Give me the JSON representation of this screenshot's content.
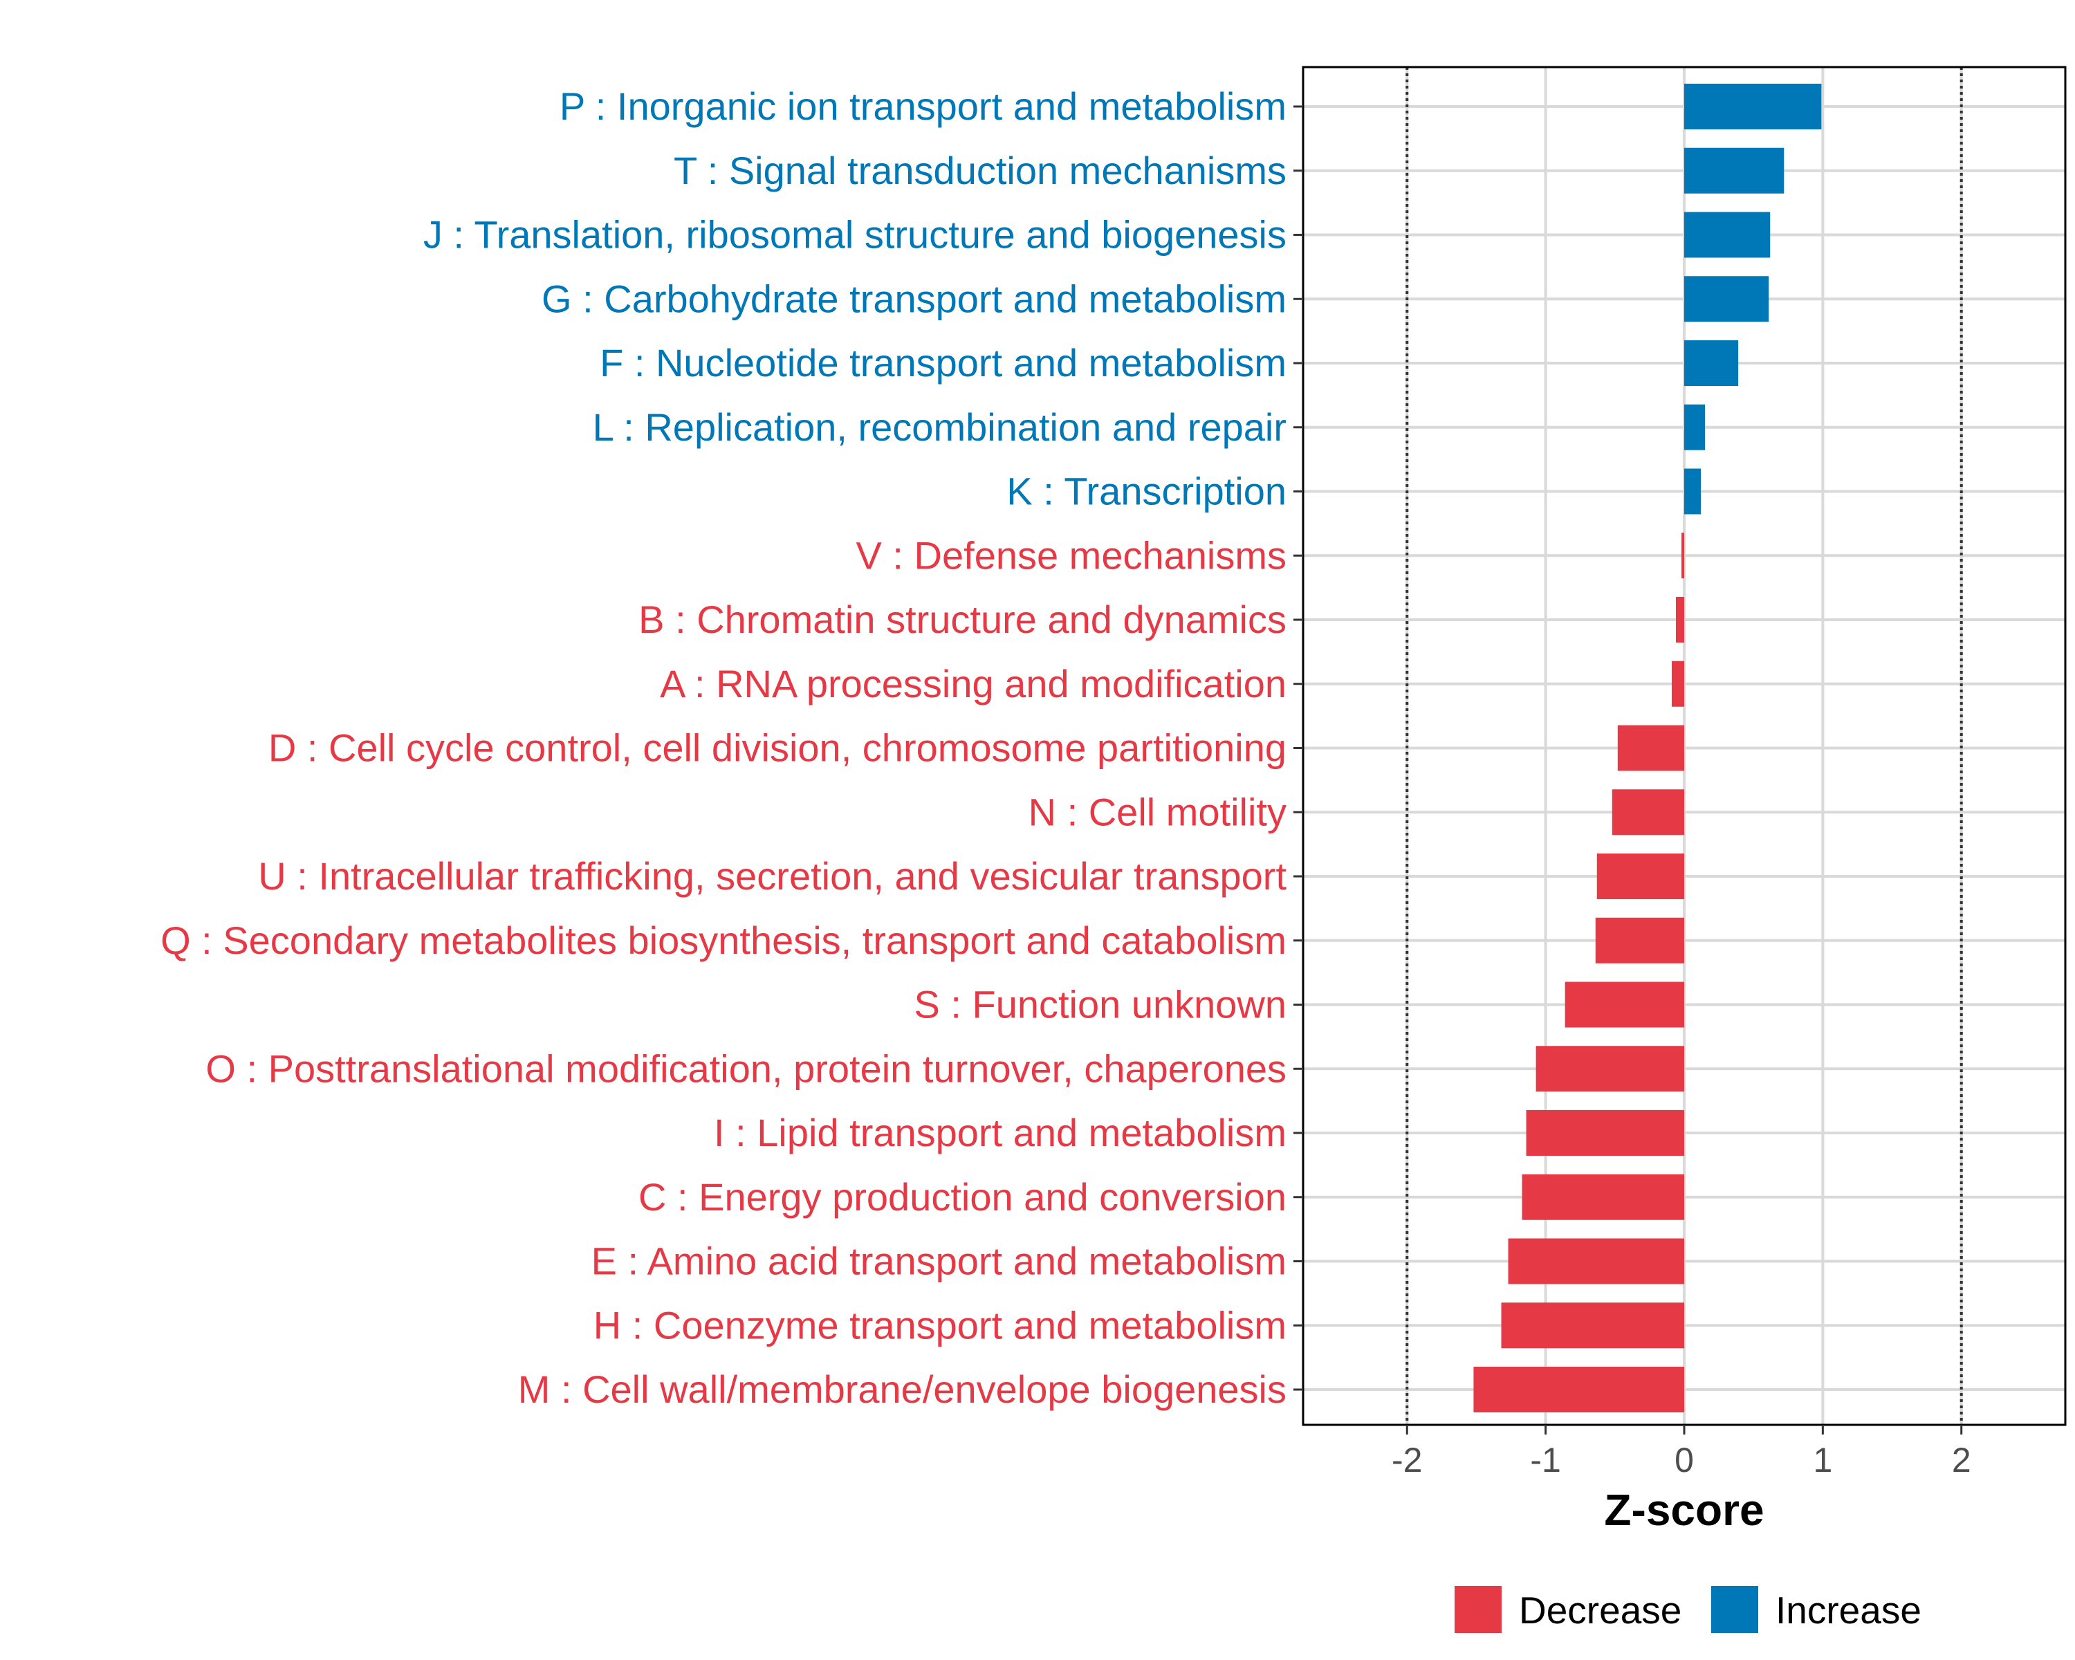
{
  "chart_data": {
    "type": "bar",
    "orientation": "horizontal",
    "xlabel": "Z-score",
    "ylabel": "",
    "xlim": [
      -2.75,
      2.75
    ],
    "xticks": [
      -2,
      -1,
      0,
      1,
      2
    ],
    "xtick_labels": [
      "-2",
      "-1",
      "0",
      "1",
      "2"
    ],
    "reference_lines": [
      -2,
      2
    ],
    "categories": [
      "P : Inorganic ion transport and metabolism",
      "T : Signal transduction mechanisms",
      "J : Translation, ribosomal structure and biogenesis",
      "G : Carbohydrate transport and metabolism",
      "F : Nucleotide transport and metabolism",
      "L : Replication, recombination and repair",
      "K : Transcription",
      "V : Defense mechanisms",
      "B : Chromatin structure and dynamics",
      "A : RNA processing and modification",
      "D : Cell cycle control, cell division, chromosome partitioning",
      "N : Cell motility",
      "U : Intracellular trafficking, secretion, and vesicular transport",
      "Q : Secondary metabolites biosynthesis, transport and catabolism",
      "S : Function unknown",
      "O : Posttranslational modification, protein turnover, chaperones",
      "I : Lipid transport and metabolism",
      "C : Energy production and conversion",
      "E : Amino acid transport and metabolism",
      "H : Coenzyme transport and metabolism",
      "M : Cell wall/membrane/envelope biogenesis"
    ],
    "values": [
      0.99,
      0.72,
      0.62,
      0.61,
      0.39,
      0.15,
      0.12,
      -0.02,
      -0.06,
      -0.09,
      -0.48,
      -0.52,
      -0.63,
      -0.64,
      -0.86,
      -1.07,
      -1.14,
      -1.17,
      -1.27,
      -1.32,
      -1.52
    ],
    "groups": [
      "Increase",
      "Increase",
      "Increase",
      "Increase",
      "Increase",
      "Increase",
      "Increase",
      "Decrease",
      "Decrease",
      "Decrease",
      "Decrease",
      "Decrease",
      "Decrease",
      "Decrease",
      "Decrease",
      "Decrease",
      "Decrease",
      "Decrease",
      "Decrease",
      "Decrease",
      "Decrease"
    ],
    "legend": [
      {
        "label": "Decrease",
        "color": "#E63946"
      },
      {
        "label": "Increase",
        "color": "#0077B6"
      }
    ],
    "legend_position": "bottom",
    "grid": true
  }
}
